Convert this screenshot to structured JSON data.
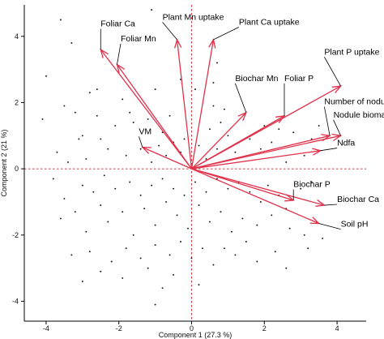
{
  "chart_data": {
    "type": "scatter",
    "subtype": "pca-biplot",
    "title": "",
    "xlabel": "Component 1  (27.3 %)",
    "ylabel": "Component 2  (21 %)",
    "xlim": [
      -4.6,
      4.8
    ],
    "ylim": [
      -4.6,
      4.95
    ],
    "xticks": [
      -4,
      -2,
      0,
      2,
      4
    ],
    "yticks": [
      -4,
      -2,
      0,
      2,
      4
    ],
    "origin_lines": true,
    "colors": {
      "vector": "#e0314b",
      "origin_line": "#d0202a",
      "point": "#111111",
      "leader": "#000000"
    },
    "vectors": [
      {
        "name": "Foliar Ca",
        "x": -2.5,
        "y": 3.6,
        "label_x": -2.5,
        "label_y": 4.3
      },
      {
        "name": "Foliar Mn",
        "x": -2.05,
        "y": 3.15,
        "label_x": -1.95,
        "label_y": 3.85
      },
      {
        "name": "Plant Mn uptake",
        "x": -0.4,
        "y": 3.9,
        "label_x": -0.8,
        "label_y": 4.5
      },
      {
        "name": "Plant Ca uptake",
        "x": 0.6,
        "y": 3.9,
        "label_x": 1.3,
        "label_y": 4.35
      },
      {
        "name": "Plant P uptake",
        "x": 4.1,
        "y": 2.5,
        "label_x": 3.65,
        "label_y": 3.45
      },
      {
        "name": "Biochar Mn",
        "x": 1.5,
        "y": 1.7,
        "label_x": 1.2,
        "label_y": 2.65
      },
      {
        "name": "Foliar P",
        "x": 2.55,
        "y": 1.6,
        "label_x": 2.55,
        "label_y": 2.65
      },
      {
        "name": "Number of nodules",
        "x": 3.8,
        "y": 1.0,
        "label_x": 3.65,
        "label_y": 1.95
      },
      {
        "name": "Nodule biomass",
        "x": 4.1,
        "y": 1.0,
        "label_x": 3.9,
        "label_y": 1.55
      },
      {
        "name": "Ndfa",
        "x": 3.55,
        "y": 0.55,
        "label_x": 4.0,
        "label_y": 0.7
      },
      {
        "name": "VM",
        "x": -1.35,
        "y": 0.65,
        "label_x": -1.45,
        "label_y": 1.05
      },
      {
        "name": "Biochar P",
        "x": 2.8,
        "y": -0.95,
        "label_x": 2.8,
        "label_y": -0.55
      },
      {
        "name": "Biochar Ca",
        "x": 3.65,
        "y": -1.1,
        "label_x": 4.0,
        "label_y": -1.0
      },
      {
        "name": "Soil pH",
        "x": 3.5,
        "y": -1.65,
        "label_x": 4.1,
        "label_y": -1.75
      }
    ],
    "points": [
      [
        -3.6,
        4.5
      ],
      [
        -3.3,
        3.8
      ],
      [
        -1.1,
        4.8
      ],
      [
        -2.6,
        2.4
      ],
      [
        -2.8,
        2.3
      ],
      [
        -4.1,
        1.5
      ],
      [
        -4.0,
        2.8
      ],
      [
        -3.5,
        1.9
      ],
      [
        -3.2,
        1.7
      ],
      [
        -3.1,
        0.9
      ],
      [
        -2.6,
        1.6
      ],
      [
        -1.9,
        2.1
      ],
      [
        -1.7,
        1.7
      ],
      [
        -1.0,
        2.4
      ],
      [
        -0.6,
        1.6
      ],
      [
        -0.3,
        2.7
      ],
      [
        0.1,
        2.4
      ],
      [
        0.6,
        1.9
      ],
      [
        0.6,
        2.6
      ],
      [
        0.9,
        1.8
      ],
      [
        0.7,
        3.2
      ],
      [
        1.0,
        1.0
      ],
      [
        0.5,
        1.2
      ],
      [
        0.8,
        1.4
      ],
      [
        -3.7,
        0.5
      ],
      [
        -3.0,
        1.0
      ],
      [
        -2.5,
        0.9
      ],
      [
        -2.1,
        1.3
      ],
      [
        -1.6,
        1.4
      ],
      [
        -1.2,
        1.5
      ],
      [
        -0.8,
        1.1
      ],
      [
        -0.5,
        0.8
      ],
      [
        -0.2,
        0.9
      ],
      [
        0.2,
        0.7
      ],
      [
        -0.9,
        0.7
      ],
      [
        -0.3,
        0.5
      ],
      [
        -1.8,
        0.4
      ],
      [
        -2.3,
        0.6
      ],
      [
        -2.9,
        0.3
      ],
      [
        -3.4,
        0.2
      ],
      [
        -1.4,
        0.6
      ],
      [
        -0.7,
        0.4
      ],
      [
        -1.1,
        0.2
      ],
      [
        0.4,
        0.3
      ],
      [
        0.7,
        0.6
      ],
      [
        1.2,
        0.5
      ],
      [
        1.6,
        0.9
      ],
      [
        1.9,
        0.6
      ],
      [
        2.2,
        0.8
      ],
      [
        2.6,
        0.2
      ],
      [
        3.1,
        0.4
      ],
      [
        3.3,
        0.9
      ],
      [
        2.8,
        1.1
      ],
      [
        2.4,
        1.2
      ],
      [
        3.5,
        1.3
      ],
      [
        2.0,
        1.3
      ],
      [
        -3.8,
        -0.3
      ],
      [
        -3.5,
        -0.9
      ],
      [
        -3.0,
        -0.5
      ],
      [
        -2.7,
        -0.7
      ],
      [
        -2.4,
        -0.2
      ],
      [
        -2.1,
        -0.6
      ],
      [
        -1.7,
        -0.4
      ],
      [
        -1.4,
        -0.8
      ],
      [
        -1.1,
        -0.5
      ],
      [
        -0.8,
        -0.3
      ],
      [
        -0.5,
        -0.6
      ],
      [
        -0.2,
        -0.8
      ],
      [
        0.1,
        -0.4
      ],
      [
        0.4,
        -0.7
      ],
      [
        0.7,
        -0.3
      ],
      [
        1.0,
        -0.6
      ],
      [
        1.3,
        -0.4
      ],
      [
        1.6,
        -0.7
      ],
      [
        2.1,
        -0.5
      ],
      [
        2.4,
        -0.8
      ],
      [
        3.0,
        -0.6
      ],
      [
        3.3,
        -0.4
      ],
      [
        2.6,
        -1.2
      ],
      [
        1.9,
        -1.0
      ],
      [
        -3.6,
        -1.5
      ],
      [
        -3.2,
        -1.3
      ],
      [
        -2.9,
        -1.9
      ],
      [
        -2.5,
        -1.1
      ],
      [
        -2.3,
        -1.6
      ],
      [
        -1.9,
        -1.3
      ],
      [
        -1.6,
        -2.0
      ],
      [
        -1.3,
        -1.2
      ],
      [
        -1.0,
        -1.7
      ],
      [
        -0.7,
        -1.0
      ],
      [
        -0.4,
        -1.4
      ],
      [
        -0.1,
        -1.8
      ],
      [
        0.2,
        -1.1
      ],
      [
        0.5,
        -1.6
      ],
      [
        0.8,
        -1.3
      ],
      [
        1.1,
        -1.9
      ],
      [
        1.4,
        -1.5
      ],
      [
        1.8,
        -1.7
      ],
      [
        2.2,
        -1.4
      ],
      [
        2.7,
        -1.8
      ],
      [
        3.1,
        -2.0
      ],
      [
        3.6,
        -2.1
      ],
      [
        1.5,
        -2.2
      ],
      [
        0.9,
        -2.4
      ],
      [
        -3.3,
        -2.6
      ],
      [
        -2.8,
        -2.5
      ],
      [
        -2.2,
        -2.8
      ],
      [
        -1.8,
        -2.4
      ],
      [
        -1.4,
        -2.7
      ],
      [
        -1.0,
        -2.3
      ],
      [
        -0.6,
        -2.6
      ],
      [
        -0.3,
        -2.2
      ],
      [
        0.0,
        -2.7
      ],
      [
        0.3,
        -2.4
      ],
      [
        0.6,
        -2.9
      ],
      [
        1.2,
        -2.6
      ],
      [
        1.8,
        -2.8
      ],
      [
        2.3,
        -2.5
      ],
      [
        -2.5,
        -3.1
      ],
      [
        -1.9,
        -3.3
      ],
      [
        -1.2,
        -3.0
      ],
      [
        -0.5,
        -3.2
      ],
      [
        0.2,
        -3.5
      ],
      [
        -3.0,
        -3.4
      ],
      [
        -1.0,
        -4.1
      ],
      [
        2.6,
        -3.0
      ],
      [
        3.2,
        -2.4
      ],
      [
        -0.8,
        -3.6
      ]
    ]
  }
}
